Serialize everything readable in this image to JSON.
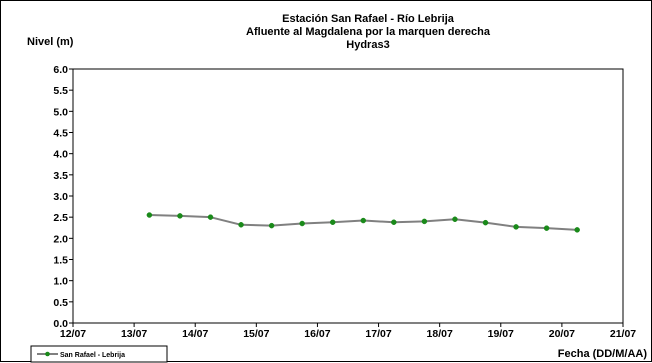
{
  "chart_data": {
    "type": "line",
    "title_lines": [
      "Estación San Rafael - Río Lebrija",
      "Afluente al Magdalena por la marquen derecha",
      "Hydras3"
    ],
    "ylabel": "Nivel (m)",
    "xlabel": "Fecha (DD/M/AA)",
    "y_tick_labels": [
      "0.0",
      "0.5",
      "1.0",
      "1.5",
      "2.0",
      "2.5",
      "3.0",
      "3.5",
      "4.0",
      "4.5",
      "5.0",
      "5.5",
      "6.0"
    ],
    "x_tick_labels": [
      "12/07",
      "13/07",
      "14/07",
      "15/07",
      "16/07",
      "17/07",
      "18/07",
      "19/07",
      "20/07",
      "21/07"
    ],
    "ylim": [
      0,
      6
    ],
    "xlim": [
      0,
      9
    ],
    "grid": true,
    "legend": {
      "placement": "bottom-left",
      "label": "San Rafael - Lebrija"
    },
    "series": [
      {
        "name": "San Rafael - Lebrija",
        "line_color": "#808080",
        "marker_color": "#1a8a1a",
        "points": [
          {
            "x": 1.25,
            "y": 2.55
          },
          {
            "x": 1.75,
            "y": 2.53
          },
          {
            "x": 2.25,
            "y": 2.5
          },
          {
            "x": 2.75,
            "y": 2.32
          },
          {
            "x": 3.25,
            "y": 2.3
          },
          {
            "x": 3.75,
            "y": 2.35
          },
          {
            "x": 4.25,
            "y": 2.38
          },
          {
            "x": 4.75,
            "y": 2.42
          },
          {
            "x": 5.25,
            "y": 2.38
          },
          {
            "x": 5.75,
            "y": 2.4
          },
          {
            "x": 6.25,
            "y": 2.45
          },
          {
            "x": 6.75,
            "y": 2.37
          },
          {
            "x": 7.25,
            "y": 2.27
          },
          {
            "x": 7.75,
            "y": 2.24
          },
          {
            "x": 8.25,
            "y": 2.2
          }
        ]
      }
    ]
  }
}
